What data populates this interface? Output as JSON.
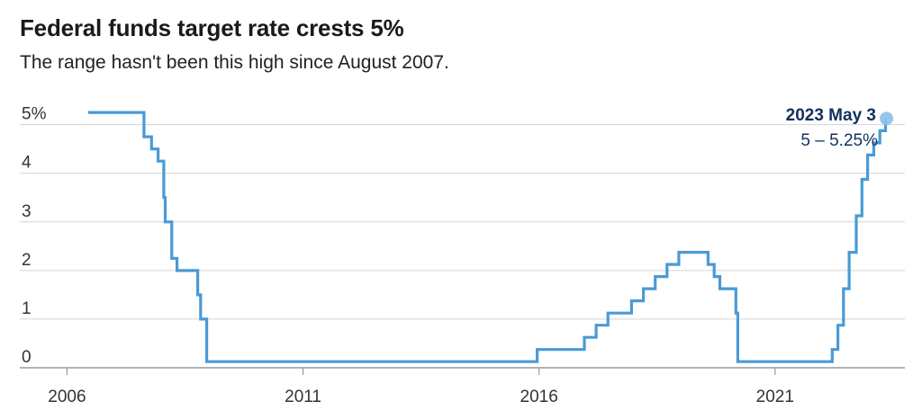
{
  "chart_data": {
    "type": "line",
    "step": true,
    "title": "Federal funds target rate crests 5%",
    "subtitle": "The range hasn't been this high since August 2007.",
    "xlabel": "",
    "ylabel": "",
    "y_ticks": [
      {
        "value": 0,
        "label": "0"
      },
      {
        "value": 1,
        "label": "1"
      },
      {
        "value": 2,
        "label": "2"
      },
      {
        "value": 3,
        "label": "3"
      },
      {
        "value": 4,
        "label": "4"
      },
      {
        "value": 5,
        "label": "5%"
      }
    ],
    "x_ticks": [
      {
        "value": 2006,
        "label": "2006"
      },
      {
        "value": 2011,
        "label": "2011"
      },
      {
        "value": 2016,
        "label": "2016"
      },
      {
        "value": 2021,
        "label": "2021"
      }
    ],
    "xlim": [
      2005.0,
      2023.75
    ],
    "ylim": [
      0,
      5.4
    ],
    "grid": "horizontal",
    "line_color": "#4a9ad6",
    "endpoint_color": "#8cbfe9",
    "annotation_color": "#12315e",
    "annotation": {
      "date": "2023 May 3",
      "value": "5 – 5.25%"
    },
    "series": [
      {
        "values": [
          [
            2006.45,
            5.25
          ],
          [
            2007.63,
            5.25
          ],
          [
            2007.63,
            4.75
          ],
          [
            2007.79,
            4.75
          ],
          [
            2007.79,
            4.5
          ],
          [
            2007.93,
            4.5
          ],
          [
            2007.93,
            4.25
          ],
          [
            2008.05,
            4.25
          ],
          [
            2008.05,
            3.5
          ],
          [
            2008.08,
            3.5
          ],
          [
            2008.08,
            3.0
          ],
          [
            2008.22,
            3.0
          ],
          [
            2008.22,
            2.25
          ],
          [
            2008.33,
            2.25
          ],
          [
            2008.33,
            2.0
          ],
          [
            2008.77,
            2.0
          ],
          [
            2008.77,
            1.5
          ],
          [
            2008.83,
            1.5
          ],
          [
            2008.83,
            1.0
          ],
          [
            2008.96,
            1.0
          ],
          [
            2008.96,
            0.125
          ],
          [
            2015.96,
            0.125
          ],
          [
            2015.96,
            0.375
          ],
          [
            2016.96,
            0.375
          ],
          [
            2016.96,
            0.625
          ],
          [
            2017.21,
            0.625
          ],
          [
            2017.21,
            0.875
          ],
          [
            2017.46,
            0.875
          ],
          [
            2017.46,
            1.125
          ],
          [
            2017.96,
            1.125
          ],
          [
            2017.96,
            1.375
          ],
          [
            2018.21,
            1.375
          ],
          [
            2018.21,
            1.625
          ],
          [
            2018.46,
            1.625
          ],
          [
            2018.46,
            1.875
          ],
          [
            2018.71,
            1.875
          ],
          [
            2018.71,
            2.125
          ],
          [
            2018.96,
            2.125
          ],
          [
            2018.96,
            2.375
          ],
          [
            2019.58,
            2.375
          ],
          [
            2019.58,
            2.125
          ],
          [
            2019.71,
            2.125
          ],
          [
            2019.71,
            1.875
          ],
          [
            2019.83,
            1.875
          ],
          [
            2019.83,
            1.625
          ],
          [
            2020.17,
            1.625
          ],
          [
            2020.17,
            1.125
          ],
          [
            2020.21,
            1.125
          ],
          [
            2020.21,
            0.125
          ],
          [
            2022.21,
            0.125
          ],
          [
            2022.21,
            0.375
          ],
          [
            2022.33,
            0.375
          ],
          [
            2022.33,
            0.875
          ],
          [
            2022.45,
            0.875
          ],
          [
            2022.45,
            1.625
          ],
          [
            2022.57,
            1.625
          ],
          [
            2022.57,
            2.375
          ],
          [
            2022.72,
            2.375
          ],
          [
            2022.72,
            3.125
          ],
          [
            2022.84,
            3.125
          ],
          [
            2022.84,
            3.875
          ],
          [
            2022.96,
            3.875
          ],
          [
            2022.96,
            4.375
          ],
          [
            2023.09,
            4.375
          ],
          [
            2023.09,
            4.625
          ],
          [
            2023.22,
            4.625
          ],
          [
            2023.22,
            4.875
          ],
          [
            2023.34,
            4.875
          ],
          [
            2023.34,
            5.125
          ]
        ]
      }
    ]
  }
}
